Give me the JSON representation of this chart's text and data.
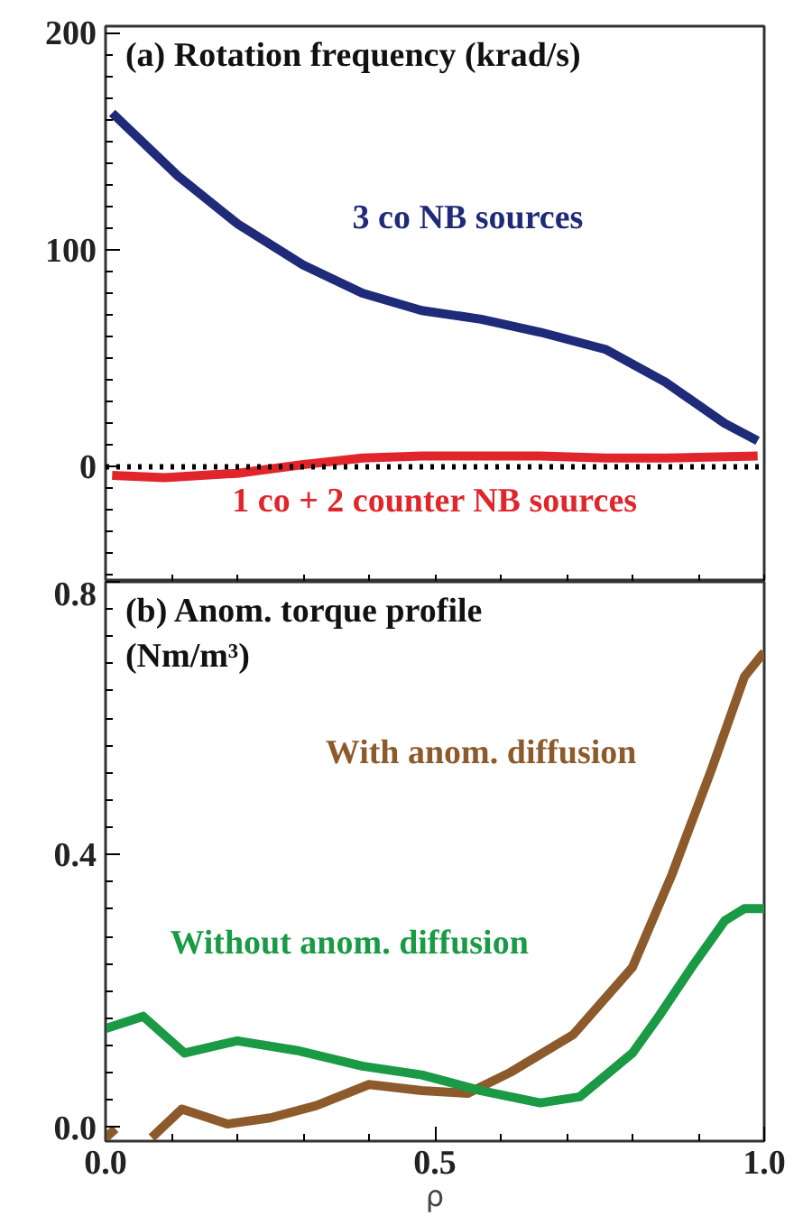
{
  "chart_data": [
    {
      "type": "line",
      "title": "(a) Rotation frequency (krad/s)",
      "xlim": [
        0,
        1
      ],
      "ylim": [
        -53,
        203
      ],
      "yticks": [
        0,
        100,
        200
      ],
      "tick_labels": "y",
      "grid": false,
      "line_style": "solid",
      "marker": "none",
      "ref_lines": [
        {
          "axis": "y",
          "value": 0,
          "color": "#000000",
          "line_style": "dotted"
        }
      ],
      "series": [
        {
          "name": "3 co NB sources",
          "color": "#1f2a78",
          "x": [
            0.01,
            0.11,
            0.2,
            0.3,
            0.39,
            0.48,
            0.57,
            0.66,
            0.76,
            0.85,
            0.94,
            0.99
          ],
          "values": [
            163,
            134,
            112,
            93,
            80,
            72,
            68,
            62,
            54,
            39,
            20,
            12
          ]
        },
        {
          "name": "1 co + 2 counter NB sources",
          "color": "#e0262b",
          "x": [
            0.01,
            0.09,
            0.2,
            0.3,
            0.39,
            0.48,
            0.57,
            0.66,
            0.76,
            0.85,
            0.99
          ],
          "values": [
            -4,
            -5,
            -3,
            1,
            4,
            5,
            5,
            5,
            4,
            4,
            5
          ]
        }
      ]
    },
    {
      "type": "line",
      "title": "(b) Anom. torque profile\n(Nm/m³)",
      "xlabel": "ρ",
      "xlim": [
        0,
        1
      ],
      "ylim": [
        -0.02,
        0.8
      ],
      "xticks": [
        {
          "value": 0,
          "label": "0.0"
        },
        0.5,
        {
          "value": 1,
          "label": "1.0"
        }
      ],
      "yticks": [
        {
          "value": 0,
          "label": "0.0"
        },
        0.4,
        0.8
      ],
      "grid": false,
      "line_style": "solid",
      "marker": "none",
      "series": [
        {
          "name": "With anom. diffusion",
          "color": "#8c5a2b",
          "x": [
            0.0,
            0.015,
            0.03,
            0.07,
            0.116,
            0.185,
            0.25,
            0.32,
            0.4,
            0.48,
            0.55,
            0.615,
            0.71,
            0.8,
            0.86,
            0.92,
            0.97,
            1.0
          ],
          "values": [
            -0.015,
            -0.002,
            null,
            -0.015,
            0.027,
            0.005,
            0.014,
            0.032,
            0.063,
            0.054,
            0.05,
            0.081,
            0.136,
            0.235,
            0.371,
            0.525,
            0.661,
            0.697
          ]
        },
        {
          "name": "Without anom. diffusion",
          "color": "#1a9a45",
          "x": [
            0.0,
            0.057,
            0.12,
            0.2,
            0.29,
            0.39,
            0.48,
            0.57,
            0.66,
            0.72,
            0.8,
            0.84,
            0.89,
            0.94,
            0.97,
            1.0
          ],
          "values": [
            0.145,
            0.163,
            0.109,
            0.127,
            0.113,
            0.09,
            0.077,
            0.054,
            0.036,
            0.045,
            0.109,
            0.163,
            0.235,
            0.303,
            0.321,
            0.321
          ]
        }
      ]
    }
  ]
}
